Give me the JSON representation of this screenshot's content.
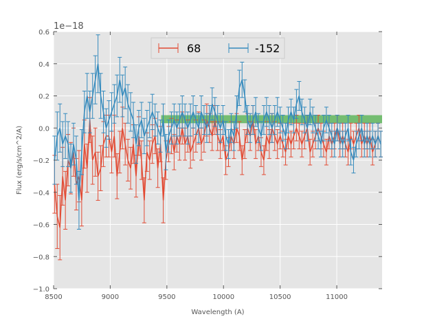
{
  "chart_data": {
    "type": "line",
    "title": "",
    "xlabel": "Wavelength (A)",
    "ylabel": "Flux (erg/s/cm^2/A)",
    "y_offset_label": "1e−18",
    "xlim": [
      8500,
      11400
    ],
    "ylim": [
      -1.0,
      0.6
    ],
    "x_ticks": [
      8500,
      9000,
      9500,
      10000,
      10500,
      11000
    ],
    "x_tick_labels": [
      "8500",
      "9000",
      "9500",
      "10000",
      "10500",
      "11000"
    ],
    "y_ticks": [
      -1.0,
      -0.8,
      -0.6,
      -0.4,
      -0.2,
      0.0,
      0.2,
      0.4,
      0.6
    ],
    "y_tick_labels": [
      "−1.0",
      "−0.8",
      "−0.6",
      "−0.4",
      "−0.2",
      "0.0",
      "0.2",
      "0.4",
      "0.6"
    ],
    "grid": true,
    "legend_position": "top-center",
    "band": {
      "x_start": 9450,
      "x_end": 11400,
      "y_low": 0.03,
      "y_high": 0.08,
      "color": "#4daf4a"
    },
    "series": [
      {
        "name": "68",
        "color": "#e24a33",
        "x": [
          8508,
          8532,
          8556,
          8580,
          8604,
          8628,
          8652,
          8676,
          8700,
          8724,
          8748,
          8772,
          8796,
          8820,
          8844,
          8868,
          8892,
          8916,
          8940,
          8964,
          8988,
          9012,
          9036,
          9060,
          9084,
          9108,
          9132,
          9156,
          9180,
          9204,
          9228,
          9252,
          9276,
          9300,
          9324,
          9348,
          9372,
          9396,
          9420,
          9444,
          9468,
          9492,
          9516,
          9540,
          9564,
          9588,
          9612,
          9636,
          9660,
          9684,
          9708,
          9732,
          9756,
          9780,
          9804,
          9828,
          9852,
          9876,
          9900,
          9924,
          9948,
          9972,
          9996,
          10020,
          10044,
          10068,
          10092,
          10116,
          10140,
          10164,
          10188,
          10212,
          10236,
          10260,
          10284,
          10308,
          10332,
          10356,
          10380,
          10404,
          10428,
          10452,
          10476,
          10500,
          10524,
          10548,
          10572,
          10596,
          10620,
          10644,
          10668,
          10692,
          10716,
          10740,
          10764,
          10788,
          10812,
          10836,
          10860,
          10884,
          10908,
          10932,
          10956,
          10980,
          11004,
          11028,
          11052,
          11076,
          11100,
          11124,
          11148,
          11172,
          11196,
          11220,
          11244,
          11268,
          11292,
          11316,
          11340,
          11364,
          11388
        ],
        "y": [
          -0.35,
          -0.55,
          -0.62,
          -0.3,
          -0.45,
          -0.2,
          -0.25,
          -0.15,
          -0.35,
          -0.3,
          -0.45,
          -0.1,
          -0.25,
          0.05,
          -0.2,
          -0.15,
          -0.3,
          -0.25,
          -0.1,
          -0.05,
          -0.05,
          -0.15,
          -0.05,
          -0.3,
          -0.15,
          0.0,
          -0.1,
          -0.2,
          -0.25,
          -0.1,
          -0.3,
          -0.05,
          -0.2,
          -0.45,
          -0.15,
          -0.2,
          -0.1,
          -0.05,
          -0.25,
          -0.1,
          -0.45,
          -0.2,
          -0.1,
          -0.05,
          -0.15,
          -0.05,
          -0.1,
          0.0,
          -0.1,
          -0.05,
          -0.15,
          -0.1,
          -0.05,
          0.0,
          -0.1,
          -0.05,
          0.05,
          0.0,
          -0.05,
          0.05,
          -0.05,
          -0.1,
          -0.05,
          -0.2,
          -0.15,
          -0.05,
          -0.1,
          0.0,
          -0.05,
          -0.2,
          -0.1,
          0.0,
          -0.05,
          0.05,
          -0.1,
          -0.05,
          -0.15,
          -0.2,
          -0.05,
          -0.1,
          0.0,
          -0.05,
          -0.1,
          -0.05,
          -0.1,
          -0.15,
          -0.05,
          -0.1,
          -0.05,
          0.0,
          -0.05,
          -0.1,
          -0.05,
          0.0,
          -0.15,
          -0.1,
          -0.05,
          0.0,
          -0.05,
          -0.1,
          -0.15,
          -0.05,
          -0.1,
          -0.05,
          0.0,
          -0.1,
          -0.05,
          -0.1,
          -0.15,
          -0.05,
          -0.1,
          -0.05,
          0.0,
          -0.1,
          -0.05,
          -0.1,
          -0.05,
          -0.15,
          -0.1,
          -0.05,
          -0.1
        ],
        "yerr": [
          0.18,
          0.2,
          0.2,
          0.18,
          0.18,
          0.16,
          0.16,
          0.15,
          0.16,
          0.16,
          0.16,
          0.15,
          0.15,
          0.14,
          0.15,
          0.15,
          0.15,
          0.14,
          0.14,
          0.13,
          0.13,
          0.13,
          0.13,
          0.14,
          0.13,
          0.13,
          0.13,
          0.13,
          0.13,
          0.12,
          0.13,
          0.12,
          0.12,
          0.14,
          0.12,
          0.12,
          0.12,
          0.11,
          0.12,
          0.11,
          0.14,
          0.12,
          0.11,
          0.11,
          0.11,
          0.1,
          0.1,
          0.1,
          0.1,
          0.1,
          0.1,
          0.1,
          0.1,
          0.1,
          0.1,
          0.1,
          0.1,
          0.09,
          0.09,
          0.09,
          0.09,
          0.09,
          0.09,
          0.09,
          0.09,
          0.09,
          0.09,
          0.09,
          0.09,
          0.09,
          0.09,
          0.09,
          0.09,
          0.09,
          0.09,
          0.09,
          0.09,
          0.09,
          0.09,
          0.09,
          0.09,
          0.09,
          0.09,
          0.08,
          0.08,
          0.08,
          0.08,
          0.08,
          0.08,
          0.08,
          0.08,
          0.08,
          0.08,
          0.08,
          0.08,
          0.08,
          0.08,
          0.08,
          0.08,
          0.08,
          0.08,
          0.08,
          0.08,
          0.08,
          0.08,
          0.08,
          0.08,
          0.08,
          0.08,
          0.08,
          0.08,
          0.08,
          0.08,
          0.08,
          0.08,
          0.08,
          0.08,
          0.08,
          0.08,
          0.08,
          0.08
        ]
      },
      {
        "name": "-152",
        "color": "#348abd",
        "x": [
          8508,
          8532,
          8556,
          8580,
          8604,
          8628,
          8652,
          8676,
          8700,
          8724,
          8748,
          8772,
          8796,
          8820,
          8844,
          8868,
          8892,
          8916,
          8940,
          8964,
          8988,
          9012,
          9036,
          9060,
          9084,
          9108,
          9132,
          9156,
          9180,
          9204,
          9228,
          9252,
          9276,
          9300,
          9324,
          9348,
          9372,
          9396,
          9420,
          9444,
          9468,
          9492,
          9516,
          9540,
          9564,
          9588,
          9612,
          9636,
          9660,
          9684,
          9708,
          9732,
          9756,
          9780,
          9804,
          9828,
          9852,
          9876,
          9900,
          9924,
          9948,
          9972,
          9996,
          10020,
          10044,
          10068,
          10092,
          10116,
          10140,
          10164,
          10188,
          10212,
          10236,
          10260,
          10284,
          10308,
          10332,
          10356,
          10380,
          10404,
          10428,
          10452,
          10476,
          10500,
          10524,
          10548,
          10572,
          10596,
          10620,
          10644,
          10668,
          10692,
          10716,
          10740,
          10764,
          10788,
          10812,
          10836,
          10860,
          10884,
          10908,
          10932,
          10956,
          10980,
          11004,
          11028,
          11052,
          11076,
          11100,
          11124,
          11148,
          11172,
          11196,
          11220,
          11244,
          11268,
          11292,
          11316,
          11340,
          11364,
          11388
        ],
        "y": [
          -0.2,
          -0.05,
          0.0,
          -0.1,
          -0.05,
          -0.1,
          -0.25,
          -0.1,
          -0.2,
          -0.45,
          -0.15,
          0.1,
          0.2,
          0.1,
          0.2,
          0.3,
          0.4,
          0.2,
          0.1,
          0.0,
          0.05,
          0.1,
          0.15,
          0.2,
          0.3,
          0.2,
          0.25,
          0.15,
          0.1,
          0.05,
          -0.1,
          0.0,
          0.05,
          -0.05,
          0.0,
          0.05,
          0.1,
          0.05,
          0.0,
          -0.05,
          0.05,
          -0.15,
          -0.05,
          0.0,
          0.05,
          0.0,
          0.05,
          0.1,
          0.05,
          0.0,
          0.05,
          0.1,
          0.05,
          0.0,
          0.1,
          0.05,
          0.0,
          0.05,
          0.15,
          0.1,
          0.05,
          0.0,
          0.05,
          -0.05,
          -0.1,
          0.0,
          -0.05,
          0.1,
          0.25,
          0.3,
          0.2,
          0.05,
          0.0,
          0.05,
          0.1,
          0.0,
          -0.05,
          0.05,
          0.1,
          0.05,
          0.0,
          0.05,
          0.1,
          0.05,
          0.0,
          -0.05,
          0.05,
          0.1,
          0.05,
          0.15,
          0.2,
          0.1,
          0.05,
          0.0,
          0.1,
          0.05,
          0.0,
          -0.05,
          -0.1,
          0.0,
          0.05,
          0.0,
          -0.05,
          -0.1,
          0.0,
          -0.05,
          -0.1,
          -0.05,
          0.0,
          -0.15,
          -0.2,
          -0.1,
          -0.05,
          0.0,
          -0.1,
          -0.05,
          -0.1,
          -0.05,
          -0.1,
          -0.05,
          -0.1
        ],
        "yerr": [
          0.15,
          0.15,
          0.15,
          0.14,
          0.14,
          0.14,
          0.15,
          0.13,
          0.15,
          0.18,
          0.14,
          0.13,
          0.14,
          0.13,
          0.14,
          0.15,
          0.18,
          0.14,
          0.13,
          0.12,
          0.12,
          0.12,
          0.12,
          0.13,
          0.14,
          0.13,
          0.13,
          0.12,
          0.12,
          0.11,
          0.12,
          0.11,
          0.11,
          0.11,
          0.11,
          0.11,
          0.11,
          0.1,
          0.1,
          0.1,
          0.1,
          0.11,
          0.1,
          0.1,
          0.1,
          0.1,
          0.1,
          0.1,
          0.1,
          0.1,
          0.1,
          0.1,
          0.09,
          0.09,
          0.1,
          0.09,
          0.09,
          0.09,
          0.1,
          0.09,
          0.09,
          0.09,
          0.09,
          0.09,
          0.09,
          0.09,
          0.09,
          0.1,
          0.11,
          0.11,
          0.1,
          0.09,
          0.09,
          0.09,
          0.09,
          0.09,
          0.09,
          0.09,
          0.09,
          0.09,
          0.09,
          0.09,
          0.09,
          0.08,
          0.08,
          0.08,
          0.08,
          0.08,
          0.08,
          0.09,
          0.09,
          0.08,
          0.08,
          0.08,
          0.08,
          0.08,
          0.08,
          0.08,
          0.08,
          0.08,
          0.08,
          0.08,
          0.08,
          0.08,
          0.08,
          0.08,
          0.08,
          0.08,
          0.08,
          0.08,
          0.08,
          0.08,
          0.08,
          0.08,
          0.08,
          0.08,
          0.08,
          0.08,
          0.08,
          0.08,
          0.08
        ]
      }
    ]
  }
}
